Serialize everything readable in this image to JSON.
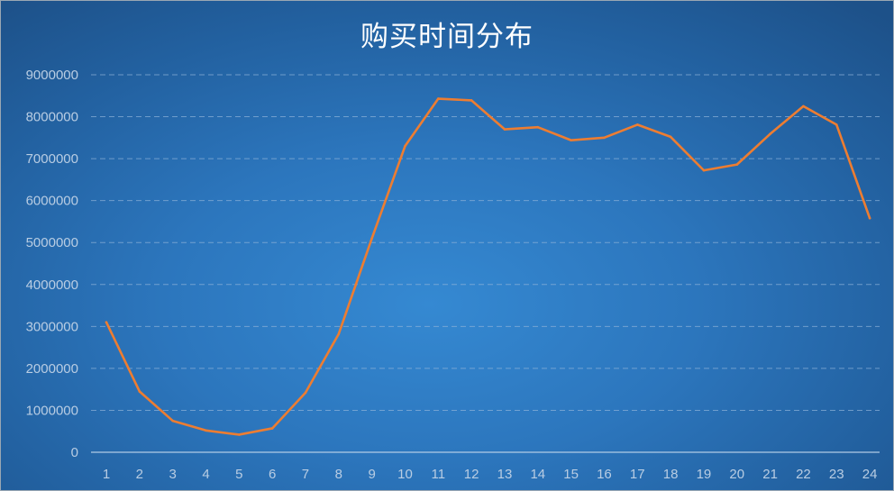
{
  "chart_data": {
    "type": "line",
    "title": "购买时间分布",
    "xlabel": "",
    "ylabel": "",
    "categories": [
      "1",
      "2",
      "3",
      "4",
      "5",
      "6",
      "7",
      "8",
      "9",
      "10",
      "11",
      "12",
      "13",
      "14",
      "15",
      "16",
      "17",
      "18",
      "19",
      "20",
      "21",
      "22",
      "23",
      "24"
    ],
    "series": [
      {
        "values": [
          3100000,
          1450000,
          750000,
          520000,
          420000,
          570000,
          1420000,
          2820000,
          5100000,
          7300000,
          8430000,
          8390000,
          7700000,
          7750000,
          7440000,
          7500000,
          7810000,
          7520000,
          6720000,
          6860000,
          7590000,
          8250000,
          7810000,
          5580000
        ]
      }
    ],
    "ylim": [
      0,
      9000000
    ],
    "yticks": [
      "0",
      "1000000",
      "2000000",
      "3000000",
      "4000000",
      "5000000",
      "6000000",
      "7000000",
      "8000000",
      "9000000"
    ],
    "grid": true,
    "legend": "none",
    "colors": {
      "line": "#ed7d31",
      "gridline": "#8fb3d9",
      "axis_text": "#b9cde3",
      "title": "#ffffff"
    }
  }
}
